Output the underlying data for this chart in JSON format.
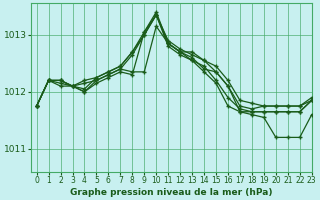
{
  "title": "Graphe pression niveau de la mer (hPa)",
  "bg_color": "#c8f0f0",
  "grid_color": "#44aa66",
  "line_color": "#1a5c1a",
  "xlim": [
    -0.5,
    23
  ],
  "ylim": [
    1010.6,
    1013.55
  ],
  "yticks": [
    1011,
    1012,
    1013
  ],
  "xticks": [
    0,
    1,
    2,
    3,
    4,
    5,
    6,
    7,
    8,
    9,
    10,
    11,
    12,
    13,
    14,
    15,
    16,
    17,
    18,
    19,
    20,
    21,
    22,
    23
  ],
  "series": [
    [
      1011.75,
      1012.2,
      1012.2,
      1012.1,
      1012.05,
      1012.25,
      1012.35,
      1012.45,
      1012.7,
      1013.0,
      1013.35,
      1012.9,
      1012.75,
      1012.65,
      1012.55,
      1012.35,
      1012.1,
      1011.75,
      1011.7,
      1011.75,
      1011.75,
      1011.75,
      1011.75,
      1011.85
    ],
    [
      1011.75,
      1012.2,
      1012.15,
      1012.1,
      1012.2,
      1012.25,
      1012.35,
      1012.45,
      1012.7,
      1013.05,
      1013.35,
      1012.85,
      1012.7,
      1012.55,
      1012.45,
      1012.2,
      1011.9,
      1011.7,
      1011.65,
      1011.65,
      1011.65,
      1011.65,
      1011.65,
      1011.85
    ],
    [
      1011.75,
      1012.2,
      1012.1,
      1012.1,
      1012.15,
      1012.2,
      1012.3,
      1012.4,
      1012.65,
      1013.0,
      1013.35,
      1012.8,
      1012.65,
      1012.55,
      1012.35,
      1012.15,
      1011.75,
      1011.65,
      1011.65,
      1011.65,
      1011.65,
      1011.65,
      1011.65,
      1011.85
    ],
    [
      1011.75,
      1012.2,
      1012.2,
      1012.1,
      1012.0,
      1012.2,
      1012.3,
      1012.4,
      1012.35,
      1012.35,
      1013.15,
      1012.85,
      1012.7,
      1012.7,
      1012.55,
      1012.45,
      1012.2,
      1011.85,
      1011.8,
      1011.75,
      1011.75,
      1011.75,
      1011.75,
      1011.9
    ],
    [
      1011.75,
      1012.2,
      1012.2,
      1012.1,
      1012.0,
      1012.15,
      1012.25,
      1012.35,
      1012.3,
      1013.05,
      1013.4,
      1012.85,
      1012.7,
      1012.6,
      1012.4,
      1012.35,
      1012.1,
      1011.65,
      1011.6,
      1011.55,
      1011.2,
      1011.2,
      1011.2,
      1011.6
    ]
  ]
}
